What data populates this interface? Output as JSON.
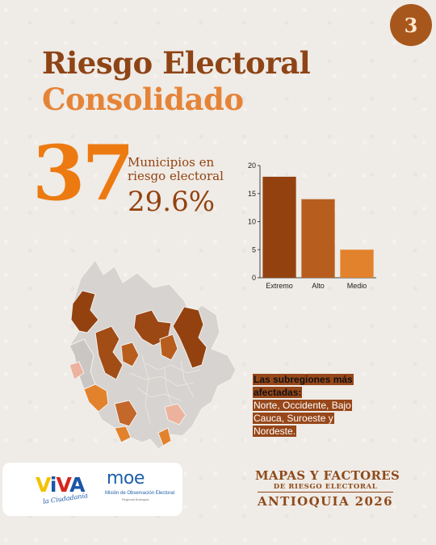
{
  "page": {
    "number": "3"
  },
  "title": {
    "line1": "Riesgo Electoral",
    "line2": "Consolidado"
  },
  "stat": {
    "value": "37",
    "label": "Municipios en riesgo electoral",
    "percent": "29.6%"
  },
  "colors": {
    "extremo": "#93420f",
    "alto": "#b75e1f",
    "medio": "#e3822c",
    "map_base": "#d6d3d0",
    "map_gray": "#c9c6c3",
    "map_light": "#ecb29e",
    "accent_orange": "#ec7a10"
  },
  "chart_data": {
    "type": "bar",
    "categories": [
      "Extremo",
      "Alto",
      "Medio"
    ],
    "values": [
      18,
      14,
      5
    ],
    "yticks": [
      0,
      5,
      10,
      15,
      20
    ],
    "ylim": [
      0,
      20
    ],
    "title": "",
    "xlabel": "",
    "ylabel": "",
    "grid": false
  },
  "callout": {
    "heading": "Las subregiones más afectadas:",
    "body": "Norte, Occidente, Bajo Cauca, Suroeste y Nordeste."
  },
  "logos": {
    "viva": {
      "letters": [
        "V",
        "i",
        "V",
        "A"
      ],
      "tagline": "la Ciudadanía"
    },
    "moe": {
      "name": "moe",
      "line1": "Misión de Observación Electoral",
      "line2": "Regional Antioquia"
    }
  },
  "footer": {
    "line1": "MAPAS Y FACTORES",
    "line2": "DE RIESGO ELECTORAL",
    "line3": "ANTIOQUIA 2026"
  }
}
